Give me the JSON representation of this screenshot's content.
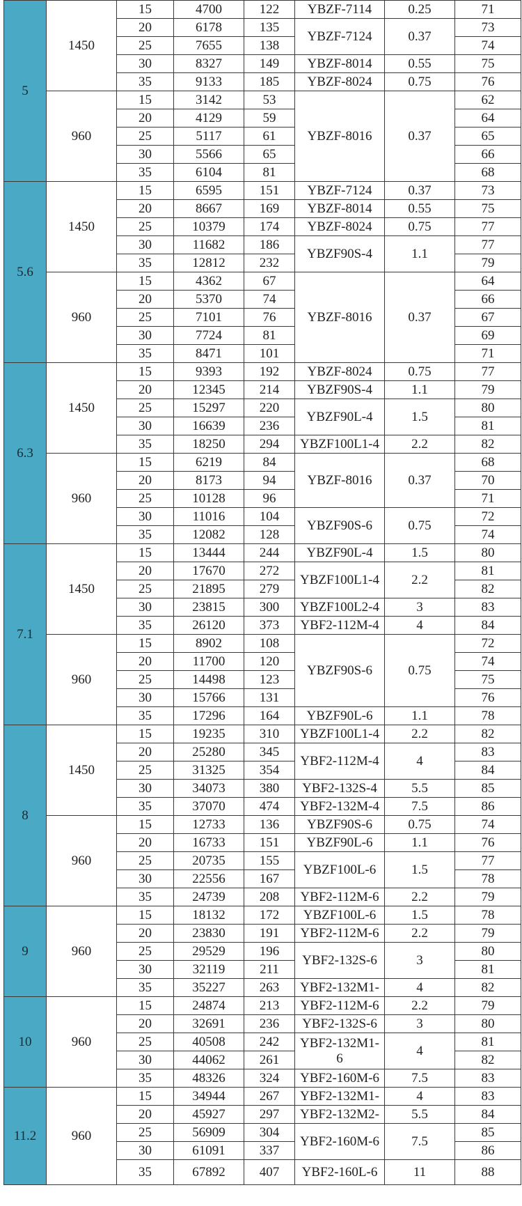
{
  "colors": {
    "size_column": "#4aa9c5",
    "border": "#3a3a3a"
  },
  "sections": [
    {
      "size": "5",
      "groups": [
        {
          "rpm": "1450",
          "rows": [
            {
              "angle": "15",
              "flow": "4700",
              "pressure": "122",
              "model": "YBZF-7114",
              "power": "0.25",
              "noise": "71"
            },
            {
              "angle": "20",
              "flow": "6178",
              "pressure": "135",
              "model": "YBZF-7124",
              "power": "0.37",
              "noise": "73",
              "span": 2
            },
            {
              "angle": "25",
              "flow": "7655",
              "pressure": "138",
              "noise": "74"
            },
            {
              "angle": "30",
              "flow": "8327",
              "pressure": "149",
              "model": "YBZF-8014",
              "power": "0.55",
              "noise": "75"
            },
            {
              "angle": "35",
              "flow": "9133",
              "pressure": "185",
              "model": "YBZF-8024",
              "power": "0.75",
              "noise": "76"
            }
          ]
        },
        {
          "rpm": "960",
          "rows": [
            {
              "angle": "15",
              "flow": "3142",
              "pressure": "53",
              "model": "YBZF-8016",
              "power": "0.37",
              "noise": "62",
              "span": 5
            },
            {
              "angle": "20",
              "flow": "4129",
              "pressure": "59",
              "noise": "64"
            },
            {
              "angle": "25",
              "flow": "5117",
              "pressure": "61",
              "noise": "65"
            },
            {
              "angle": "30",
              "flow": "5566",
              "pressure": "65",
              "noise": "66"
            },
            {
              "angle": "35",
              "flow": "6104",
              "pressure": "81",
              "noise": "68"
            }
          ]
        }
      ]
    },
    {
      "size": "5.6",
      "groups": [
        {
          "rpm": "1450",
          "rows": [
            {
              "angle": "15",
              "flow": "6595",
              "pressure": "151",
              "model": "YBZF-7124",
              "power": "0.37",
              "noise": "73"
            },
            {
              "angle": "20",
              "flow": "8667",
              "pressure": "169",
              "model": "YBZF-8014",
              "power": "0.55",
              "noise": "75"
            },
            {
              "angle": "25",
              "flow": "10379",
              "pressure": "174",
              "model": "YBZF-8024",
              "power": "0.75",
              "noise": "77"
            },
            {
              "angle": "30",
              "flow": "11682",
              "pressure": "186",
              "model": "YBZF90S-4",
              "power": "1.1",
              "noise": "77",
              "span": 2
            },
            {
              "angle": "35",
              "flow": "12812",
              "pressure": "232",
              "noise": "79"
            }
          ]
        },
        {
          "rpm": "960",
          "rows": [
            {
              "angle": "15",
              "flow": "4362",
              "pressure": "67",
              "model": "YBZF-8016",
              "power": "0.37",
              "noise": "64",
              "span": 5
            },
            {
              "angle": "20",
              "flow": "5370",
              "pressure": "74",
              "noise": "66"
            },
            {
              "angle": "25",
              "flow": "7101",
              "pressure": "76",
              "noise": "67"
            },
            {
              "angle": "30",
              "flow": "7724",
              "pressure": "81",
              "noise": "69"
            },
            {
              "angle": "35",
              "flow": "8471",
              "pressure": "101",
              "noise": "71"
            }
          ]
        }
      ]
    },
    {
      "size": "6.3",
      "groups": [
        {
          "rpm": "1450",
          "rows": [
            {
              "angle": "15",
              "flow": "9393",
              "pressure": "192",
              "model": "YBZF-8024",
              "power": "0.75",
              "noise": "77"
            },
            {
              "angle": "20",
              "flow": "12345",
              "pressure": "214",
              "model": "YBZF90S-4",
              "power": "1.1",
              "noise": "79"
            },
            {
              "angle": "25",
              "flow": "15297",
              "pressure": "220",
              "model": "YBZF90L-4",
              "power": "1.5",
              "noise": "80",
              "span": 2
            },
            {
              "angle": "30",
              "flow": "16639",
              "pressure": "236",
              "noise": "81"
            },
            {
              "angle": "35",
              "flow": "18250",
              "pressure": "294",
              "model": "YBZF100L1-4",
              "power": "2.2",
              "noise": "82"
            }
          ]
        },
        {
          "rpm": "960",
          "rows": [
            {
              "angle": "15",
              "flow": "6219",
              "pressure": "84",
              "model": "YBZF-8016",
              "power": "0.37",
              "noise": "68",
              "span": 3
            },
            {
              "angle": "20",
              "flow": "8173",
              "pressure": "94",
              "noise": "70"
            },
            {
              "angle": "25",
              "flow": "10128",
              "pressure": "96",
              "noise": "71"
            },
            {
              "angle": "30",
              "flow": "11016",
              "pressure": "104",
              "model": "YBZF90S-6",
              "power": "0.75",
              "noise": "72",
              "span": 2
            },
            {
              "angle": "35",
              "flow": "12082",
              "pressure": "128",
              "noise": "74"
            }
          ]
        }
      ]
    },
    {
      "size": "7.1",
      "groups": [
        {
          "rpm": "1450",
          "rows": [
            {
              "angle": "15",
              "flow": "13444",
              "pressure": "244",
              "model": "YBZF90L-4",
              "power": "1.5",
              "noise": "80"
            },
            {
              "angle": "20",
              "flow": "17670",
              "pressure": "272",
              "model": "YBZF100L1-4",
              "power": "2.2",
              "noise": "81",
              "span": 2
            },
            {
              "angle": "25",
              "flow": "21895",
              "pressure": "279",
              "noise": "82"
            },
            {
              "angle": "30",
              "flow": "23815",
              "pressure": "300",
              "model": "YBZF100L2-4",
              "power": "3",
              "noise": "83"
            },
            {
              "angle": "35",
              "flow": "26120",
              "pressure": "373",
              "model": "YBF2-112M-4",
              "power": "4",
              "noise": "84"
            }
          ]
        },
        {
          "rpm": "960",
          "rows": [
            {
              "angle": "15",
              "flow": "8902",
              "pressure": "108",
              "model": "YBZF90S-6",
              "power": "0.75",
              "noise": "72",
              "span": 4
            },
            {
              "angle": "20",
              "flow": "11700",
              "pressure": "120",
              "noise": "74"
            },
            {
              "angle": "25",
              "flow": "14498",
              "pressure": "123",
              "noise": "75"
            },
            {
              "angle": "30",
              "flow": "15766",
              "pressure": "131",
              "noise": "76"
            },
            {
              "angle": "35",
              "flow": "17296",
              "pressure": "164",
              "model": "YBZF90L-6",
              "power": "1.1",
              "noise": "78"
            }
          ]
        }
      ]
    },
    {
      "size": "8",
      "groups": [
        {
          "rpm": "1450",
          "rows": [
            {
              "angle": "15",
              "flow": "19235",
              "pressure": "310",
              "model": "YBZF100L1-4",
              "power": "2.2",
              "noise": "82"
            },
            {
              "angle": "20",
              "flow": "25280",
              "pressure": "345",
              "model": "YBF2-112M-4",
              "power": "4",
              "noise": "83",
              "span": 2
            },
            {
              "angle": "25",
              "flow": "31325",
              "pressure": "354",
              "noise": "84"
            },
            {
              "angle": "30",
              "flow": "34073",
              "pressure": "380",
              "model": "YBF2-132S-4",
              "power": "5.5",
              "noise": "85"
            },
            {
              "angle": "35",
              "flow": "37070",
              "pressure": "474",
              "model": "YBF2-132M-4",
              "power": "7.5",
              "noise": "86"
            }
          ]
        },
        {
          "rpm": "960",
          "rows": [
            {
              "angle": "15",
              "flow": "12733",
              "pressure": "136",
              "model": "YBZF90S-6",
              "power": "0.75",
              "noise": "74"
            },
            {
              "angle": "20",
              "flow": "16733",
              "pressure": "151",
              "model": "YBZF90L-6",
              "power": "1.1",
              "noise": "76"
            },
            {
              "angle": "25",
              "flow": "20735",
              "pressure": "155",
              "model": "YBZF100L-6",
              "power": "1.5",
              "noise": "77",
              "span": 2
            },
            {
              "angle": "30",
              "flow": "22556",
              "pressure": "167",
              "noise": "78"
            },
            {
              "angle": "35",
              "flow": "24739",
              "pressure": "208",
              "model": "YBF2-112M-6",
              "power": "2.2",
              "noise": "79"
            }
          ]
        }
      ]
    },
    {
      "size": "9",
      "groups": [
        {
          "rpm": "960",
          "rows": [
            {
              "angle": "15",
              "flow": "18132",
              "pressure": "172",
              "model": "YBZF100L-6",
              "power": "1.5",
              "noise": "78"
            },
            {
              "angle": "20",
              "flow": "23830",
              "pressure": "191",
              "model": "YBF2-112M-6",
              "power": "2.2",
              "noise": "79"
            },
            {
              "angle": "25",
              "flow": "29529",
              "pressure": "196",
              "model": "YBF2-132S-6",
              "power": "3",
              "noise": "80",
              "span": 2
            },
            {
              "angle": "30",
              "flow": "32119",
              "pressure": "211",
              "noise": "81"
            },
            {
              "angle": "35",
              "flow": "35227",
              "pressure": "263",
              "model": "YBF2-132M1-",
              "power": "4",
              "noise": "82"
            }
          ]
        }
      ]
    },
    {
      "size": "10",
      "groups": [
        {
          "rpm": "960",
          "rows": [
            {
              "angle": "15",
              "flow": "24874",
              "pressure": "213",
              "model": "YBF2-112M-6",
              "power": "2.2",
              "noise": "79"
            },
            {
              "angle": "20",
              "flow": "32691",
              "pressure": "236",
              "model": "YBF2-132S-6",
              "power": "3",
              "noise": "80"
            },
            {
              "angle": "25",
              "flow": "40508",
              "pressure": "242",
              "model": "YBF2-132M1-\n6",
              "power": "4",
              "noise": "81",
              "span": 2
            },
            {
              "angle": "30",
              "flow": "44062",
              "pressure": "261",
              "noise": "82"
            },
            {
              "angle": "35",
              "flow": "48326",
              "pressure": "324",
              "model": "YBF2-160M-6",
              "power": "7.5",
              "noise": "83"
            }
          ]
        }
      ]
    },
    {
      "size": "11.2",
      "groups": [
        {
          "rpm": "960",
          "rows": [
            {
              "angle": "15",
              "flow": "34944",
              "pressure": "267",
              "model": "YBF2-132M1-",
              "power": "4",
              "noise": "83"
            },
            {
              "angle": "20",
              "flow": "45927",
              "pressure": "297",
              "model": "YBF2-132M2-",
              "power": "5.5",
              "noise": "84"
            },
            {
              "angle": "25",
              "flow": "56909",
              "pressure": "304",
              "model": "YBF2-160M-6",
              "power": "7.5",
              "noise": "85",
              "span": 2
            },
            {
              "angle": "30",
              "flow": "61091",
              "pressure": "337",
              "noise": "86"
            },
            {
              "angle": "35",
              "flow": "67892",
              "pressure": "407",
              "model": "YBF2-160L-6",
              "power": "11",
              "noise": "88"
            }
          ]
        }
      ]
    }
  ]
}
